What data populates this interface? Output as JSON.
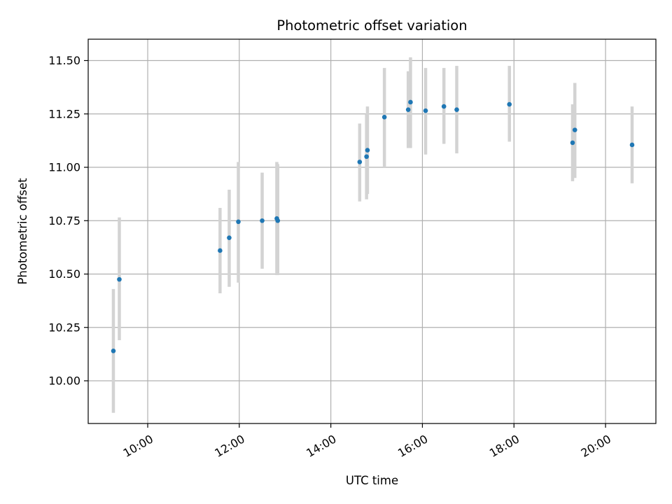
{
  "chart_data": {
    "type": "scatter",
    "title": "Photometric offset variation",
    "xlabel": "UTC time",
    "ylabel": "Photometric offset",
    "x_unit": "hours (UTC)",
    "xlim": [
      8.7,
      21.1
    ],
    "ylim": [
      9.8,
      11.6
    ],
    "grid": true,
    "x_ticks": [
      {
        "value": 10,
        "label": "10:00"
      },
      {
        "value": 12,
        "label": "12:00"
      },
      {
        "value": 14,
        "label": "14:00"
      },
      {
        "value": 16,
        "label": "16:00"
      },
      {
        "value": 18,
        "label": "18:00"
      },
      {
        "value": 20,
        "label": "20:00"
      }
    ],
    "y_ticks": [
      {
        "value": 10.0,
        "label": "10.00"
      },
      {
        "value": 10.25,
        "label": "10.25"
      },
      {
        "value": 10.5,
        "label": "10.50"
      },
      {
        "value": 10.75,
        "label": "10.75"
      },
      {
        "value": 11.0,
        "label": "11.00"
      },
      {
        "value": 11.25,
        "label": "11.25"
      },
      {
        "value": 11.5,
        "label": "11.50"
      }
    ],
    "colors": {
      "point": "#1f77b4",
      "errorbar": "#d3d3d3",
      "grid": "#b0b0b0"
    },
    "series": [
      {
        "points": [
          {
            "x": 9.25,
            "y": 10.14,
            "lo": 9.85,
            "hi": 10.43
          },
          {
            "x": 9.38,
            "y": 10.475,
            "lo": 10.19,
            "hi": 10.765
          },
          {
            "x": 11.58,
            "y": 10.61,
            "lo": 10.41,
            "hi": 10.81
          },
          {
            "x": 11.78,
            "y": 10.67,
            "lo": 10.44,
            "hi": 10.895
          },
          {
            "x": 11.98,
            "y": 10.745,
            "lo": 10.46,
            "hi": 11.025
          },
          {
            "x": 12.5,
            "y": 10.75,
            "lo": 10.525,
            "hi": 10.975
          },
          {
            "x": 12.82,
            "y": 10.76,
            "lo": 10.495,
            "hi": 11.025
          },
          {
            "x": 12.84,
            "y": 10.75,
            "lo": 10.495,
            "hi": 11.015
          },
          {
            "x": 14.63,
            "y": 11.025,
            "lo": 10.84,
            "hi": 11.205
          },
          {
            "x": 14.78,
            "y": 11.05,
            "lo": 10.85,
            "hi": 11.25
          },
          {
            "x": 14.8,
            "y": 11.08,
            "lo": 10.875,
            "hi": 11.285
          },
          {
            "x": 15.17,
            "y": 11.235,
            "lo": 11.0,
            "hi": 11.465
          },
          {
            "x": 15.69,
            "y": 11.27,
            "lo": 11.09,
            "hi": 11.45
          },
          {
            "x": 15.74,
            "y": 11.305,
            "lo": 11.09,
            "hi": 11.515
          },
          {
            "x": 16.07,
            "y": 11.265,
            "lo": 11.06,
            "hi": 11.465
          },
          {
            "x": 16.47,
            "y": 11.285,
            "lo": 11.11,
            "hi": 11.465
          },
          {
            "x": 16.75,
            "y": 11.27,
            "lo": 11.065,
            "hi": 11.475
          },
          {
            "x": 17.9,
            "y": 11.295,
            "lo": 11.12,
            "hi": 11.475
          },
          {
            "x": 19.28,
            "y": 11.115,
            "lo": 10.935,
            "hi": 11.295
          },
          {
            "x": 19.33,
            "y": 11.175,
            "lo": 10.95,
            "hi": 11.395
          },
          {
            "x": 20.58,
            "y": 11.105,
            "lo": 10.925,
            "hi": 11.285
          }
        ]
      }
    ]
  }
}
